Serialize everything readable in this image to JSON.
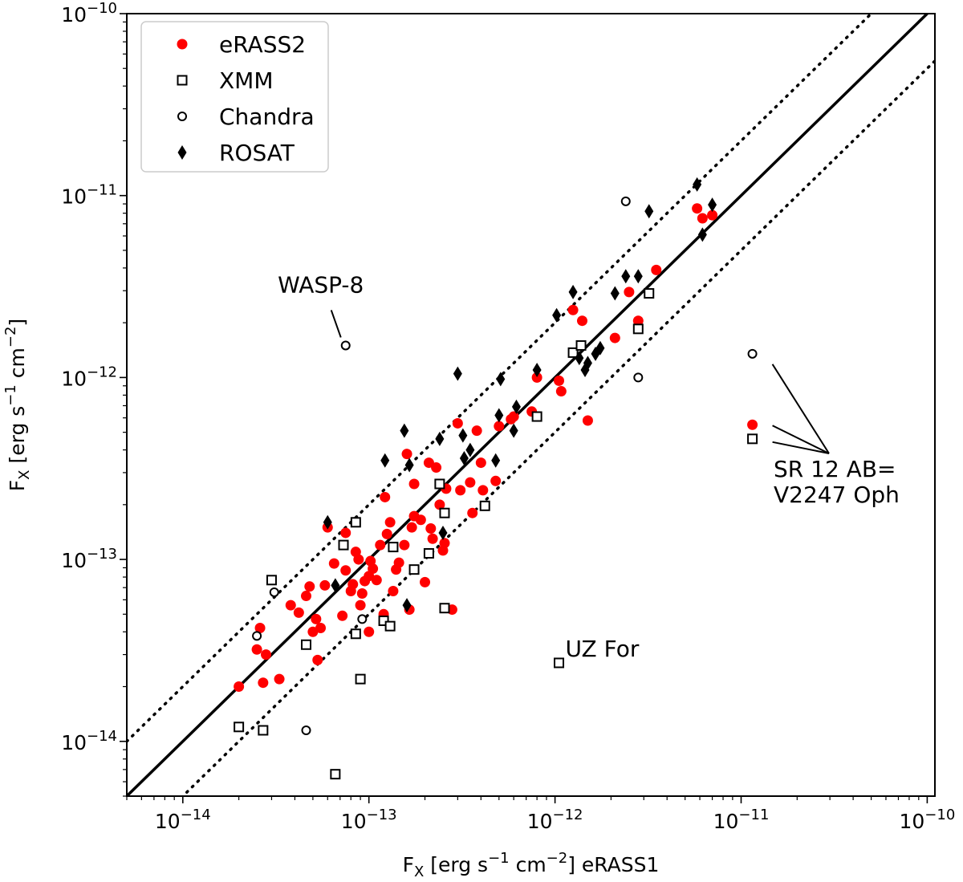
{
  "chart_data": {
    "type": "scatter",
    "xscale": "log",
    "yscale": "log",
    "xlim": [
      5e-15,
      1.1e-10
    ],
    "ylim": [
      5e-15,
      1e-10
    ],
    "xlabel": {
      "main": "F",
      "sub": "X",
      "units_pre": " [erg s",
      "exp1": "−1",
      "units_mid": " cm",
      "exp2": "−2",
      "units_post": "] eRASS1"
    },
    "ylabel": {
      "main": "F",
      "sub": "X",
      "units_pre": " [erg s",
      "exp1": "−1",
      "units_mid": " cm",
      "exp2": "−2",
      "units_post": "]"
    },
    "xticks": [
      {
        "value": 1e-14,
        "base": "10",
        "exp": "−14"
      },
      {
        "value": 1e-13,
        "base": "10",
        "exp": "−13"
      },
      {
        "value": 1e-12,
        "base": "10",
        "exp": "−12"
      },
      {
        "value": 1e-11,
        "base": "10",
        "exp": "−11"
      },
      {
        "value": 1e-10,
        "base": "10",
        "exp": "−10"
      }
    ],
    "yticks": [
      {
        "value": 1e-14,
        "base": "10",
        "exp": "−14"
      },
      {
        "value": 1e-13,
        "base": "10",
        "exp": "−13"
      },
      {
        "value": 1e-12,
        "base": "10",
        "exp": "−12"
      },
      {
        "value": 1e-11,
        "base": "10",
        "exp": "−11"
      },
      {
        "value": 1e-10,
        "base": "10",
        "exp": "−10"
      }
    ],
    "lines": [
      {
        "name": "one-to-one",
        "style": "solid",
        "factor": 1
      },
      {
        "name": "factor-2-upper",
        "style": "dotted",
        "factor": 2
      },
      {
        "name": "factor-2-lower",
        "style": "dotted",
        "factor": 0.5
      }
    ],
    "legend": {
      "position": "upper-left",
      "entries": [
        "eRASS2",
        "XMM",
        "Chandra",
        "ROSAT"
      ]
    },
    "series": [
      {
        "name": "eRASS2",
        "marker": "filled-circle",
        "color": "#ff0000",
        "points": [
          [
            2e-14,
            2e-14
          ],
          [
            2.5e-14,
            3.2e-14
          ],
          [
            2.6e-14,
            4.2e-14
          ],
          [
            2.7e-14,
            2.1e-14
          ],
          [
            2.8e-14,
            3e-14
          ],
          [
            3.3e-14,
            2.2e-14
          ],
          [
            3.8e-14,
            5.6e-14
          ],
          [
            4.2e-14,
            5.1e-14
          ],
          [
            4.6e-14,
            6.3e-14
          ],
          [
            4.8e-14,
            7.1e-14
          ],
          [
            5e-14,
            4e-14
          ],
          [
            5.2e-14,
            4.7e-14
          ],
          [
            5.3e-14,
            2.8e-14
          ],
          [
            5.5e-14,
            4.2e-14
          ],
          [
            5.8e-14,
            7.2e-14
          ],
          [
            6e-14,
            1.5e-13
          ],
          [
            6.5e-14,
            9.5e-14
          ],
          [
            7.2e-14,
            4.9e-14
          ],
          [
            7.5e-14,
            8.7e-14
          ],
          [
            7.5e-14,
            1.4e-13
          ],
          [
            8e-14,
            6.7e-14
          ],
          [
            8.2e-14,
            7.3e-14
          ],
          [
            8.5e-14,
            1.1e-13
          ],
          [
            8.8e-14,
            1e-13
          ],
          [
            9e-14,
            5.6e-14
          ],
          [
            9.2e-14,
            6.5e-14
          ],
          [
            9.5e-14,
            7.6e-14
          ],
          [
            1e-13,
            4e-14
          ],
          [
            1e-13,
            8.1e-14
          ],
          [
            1.02e-13,
            9.8e-14
          ],
          [
            1.05e-13,
            8.9e-14
          ],
          [
            1.1e-13,
            7.7e-14
          ],
          [
            1.15e-13,
            1.2e-13
          ],
          [
            1.2e-13,
            5e-14
          ],
          [
            1.22e-13,
            2.2e-13
          ],
          [
            1.25e-13,
            1.38e-13
          ],
          [
            1.3e-13,
            1.6e-13
          ],
          [
            1.35e-13,
            6.7e-14
          ],
          [
            1.4e-13,
            8.8e-14
          ],
          [
            1.45e-13,
            9.6e-14
          ],
          [
            1.55e-13,
            1.2e-13
          ],
          [
            1.6e-13,
            3.8e-13
          ],
          [
            1.65e-13,
            5.3e-14
          ],
          [
            1.7e-13,
            1.5e-13
          ],
          [
            1.75e-13,
            2.6e-13
          ],
          [
            1.75e-13,
            1.73e-13
          ],
          [
            1.9e-13,
            1.65e-13
          ],
          [
            2e-13,
            7.5e-14
          ],
          [
            2.1e-13,
            3.4e-13
          ],
          [
            2.15e-13,
            1.48e-13
          ],
          [
            2.2e-13,
            1.3e-13
          ],
          [
            2.3e-13,
            3.2e-13
          ],
          [
            2.4e-13,
            2e-13
          ],
          [
            2.5e-13,
            1.12e-13
          ],
          [
            2.55e-13,
            1.23e-13
          ],
          [
            2.6e-13,
            2.45e-13
          ],
          [
            2.8e-13,
            5.3e-14
          ],
          [
            3e-13,
            5.6e-13
          ],
          [
            3.1e-13,
            2.4e-13
          ],
          [
            3.5e-13,
            2.65e-13
          ],
          [
            3.6e-13,
            1.8e-13
          ],
          [
            3.8e-13,
            5.1e-13
          ],
          [
            4e-13,
            3.4e-13
          ],
          [
            4.1e-13,
            2.4e-13
          ],
          [
            4.8e-13,
            2.7e-13
          ],
          [
            5e-13,
            5.4e-13
          ],
          [
            5.8e-13,
            5.9e-13
          ],
          [
            6e-13,
            6.1e-13
          ],
          [
            7.5e-13,
            6.5e-13
          ],
          [
            8e-13,
            1e-12
          ],
          [
            1.05e-12,
            9.6e-13
          ],
          [
            1.08e-12,
            8.4e-13
          ],
          [
            1.25e-12,
            2.35e-12
          ],
          [
            1.4e-12,
            2.05e-12
          ],
          [
            1.5e-12,
            5.8e-13
          ],
          [
            2.1e-12,
            1.65e-12
          ],
          [
            2.5e-12,
            2.95e-12
          ],
          [
            2.8e-12,
            2.05e-12
          ],
          [
            3.5e-12,
            3.9e-12
          ],
          [
            5.8e-12,
            8.5e-12
          ],
          [
            6.2e-12,
            7.5e-12
          ],
          [
            7e-12,
            7.8e-12
          ],
          [
            1.15e-11,
            5.5e-13
          ]
        ]
      },
      {
        "name": "XMM",
        "marker": "open-square",
        "color": "#000000",
        "points": [
          [
            2e-14,
            1.2e-14
          ],
          [
            2.7e-14,
            1.15e-14
          ],
          [
            3e-14,
            7.7e-14
          ],
          [
            4.6e-14,
            3.4e-14
          ],
          [
            6.6e-14,
            6.6e-15
          ],
          [
            7.3e-14,
            1.2e-13
          ],
          [
            8.5e-14,
            1.6e-13
          ],
          [
            8.5e-14,
            3.9e-14
          ],
          [
            9e-14,
            2.2e-14
          ],
          [
            1.2e-13,
            4.6e-14
          ],
          [
            1.3e-13,
            4.3e-14
          ],
          [
            1.35e-13,
            1.17e-13
          ],
          [
            1.75e-13,
            8.8e-14
          ],
          [
            2.1e-13,
            1.08e-13
          ],
          [
            2.4e-13,
            2.6e-13
          ],
          [
            2.55e-13,
            1.8e-13
          ],
          [
            2.55e-13,
            5.4e-14
          ],
          [
            4.2e-13,
            1.97e-13
          ],
          [
            8e-13,
            6.1e-13
          ],
          [
            1.05e-12,
            2.7e-14
          ],
          [
            1.25e-12,
            1.37e-12
          ],
          [
            1.38e-12,
            1.5e-12
          ],
          [
            2.8e-12,
            1.85e-12
          ],
          [
            3.2e-12,
            2.9e-12
          ],
          [
            1.15e-11,
            4.6e-13
          ]
        ]
      },
      {
        "name": "Chandra",
        "marker": "open-circle",
        "color": "#000000",
        "points": [
          [
            2.5e-14,
            3.8e-14
          ],
          [
            3.1e-14,
            6.6e-14
          ],
          [
            4.6e-14,
            1.15e-14
          ],
          [
            7.5e-14,
            1.5e-12
          ],
          [
            9.2e-14,
            4.7e-14
          ],
          [
            2.4e-12,
            9.3e-12
          ],
          [
            2.8e-12,
            1e-12
          ],
          [
            1.15e-11,
            1.35e-12
          ]
        ]
      },
      {
        "name": "ROSAT",
        "marker": "filled-diamond",
        "color": "#000000",
        "points": [
          [
            6e-14,
            1.6e-13
          ],
          [
            6.6e-14,
            7.2e-14
          ],
          [
            1.22e-13,
            3.5e-13
          ],
          [
            1.55e-13,
            5.1e-13
          ],
          [
            1.6e-13,
            5.6e-14
          ],
          [
            1.65e-13,
            3.3e-13
          ],
          [
            2.4e-13,
            4.6e-13
          ],
          [
            2.5e-13,
            1.4e-13
          ],
          [
            3e-13,
            1.05e-12
          ],
          [
            3.2e-13,
            4.8e-13
          ],
          [
            3.25e-13,
            3.6e-13
          ],
          [
            3.5e-13,
            4e-13
          ],
          [
            4.8e-13,
            3.5e-13
          ],
          [
            5e-13,
            6.2e-13
          ],
          [
            5.1e-13,
            9.8e-13
          ],
          [
            6e-13,
            5.1e-13
          ],
          [
            6.2e-13,
            6.9e-13
          ],
          [
            8e-13,
            1.1e-12
          ],
          [
            1.02e-12,
            2.2e-12
          ],
          [
            1.25e-12,
            2.95e-12
          ],
          [
            1.35e-12,
            1.28e-12
          ],
          [
            1.45e-12,
            1.1e-12
          ],
          [
            1.5e-12,
            1.2e-12
          ],
          [
            1.65e-12,
            1.35e-12
          ],
          [
            1.75e-12,
            1.45e-12
          ],
          [
            2.1e-12,
            2.9e-12
          ],
          [
            2.4e-12,
            3.6e-12
          ],
          [
            2.8e-12,
            3.6e-12
          ],
          [
            3.2e-12,
            8.2e-12
          ],
          [
            5.8e-12,
            1.15e-11
          ],
          [
            6.2e-12,
            6.1e-12
          ],
          [
            7e-12,
            8.9e-12
          ]
        ]
      }
    ],
    "annotations": [
      {
        "id": "wasp8",
        "lines": [
          "WASP-8"
        ],
        "target": [
          7.5e-14,
          1.5e-12
        ]
      },
      {
        "id": "uzfor",
        "lines": [
          "UZ For"
        ],
        "target": [
          1.05e-12,
          2.7e-14
        ]
      },
      {
        "id": "sr12",
        "lines": [
          "SR 12 AB=",
          "V2247 Oph"
        ],
        "targets": [
          [
            1.15e-11,
            1.35e-12
          ],
          [
            1.15e-11,
            5.5e-13
          ],
          [
            1.15e-11,
            4.6e-13
          ]
        ]
      }
    ]
  }
}
